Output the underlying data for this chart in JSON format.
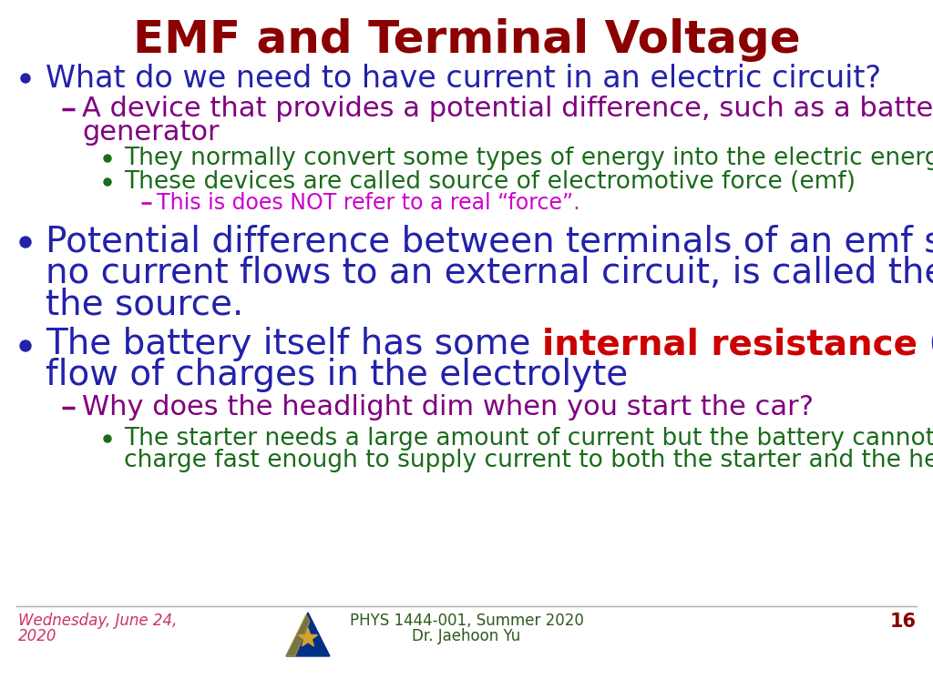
{
  "title": "EMF and Terminal Voltage",
  "title_color": "#8B0000",
  "title_fontsize": 36,
  "bg_color": "#FFFFFF",
  "blue": "#2222aa",
  "purple": "#800080",
  "green": "#1a6b1a",
  "magenta": "#cc00cc",
  "red_bold": "#cc0000",
  "footer_date_color": "#cc3366",
  "footer_center_color": "#2d5a1b",
  "footer_page_color": "#8B0000",
  "footer_date": "Wednesday, June 24,\n2020",
  "footer_center_line1": "PHYS 1444-001, Summer 2020",
  "footer_center_line2": "Dr. Jaehoon Yu",
  "footer_page": "16"
}
